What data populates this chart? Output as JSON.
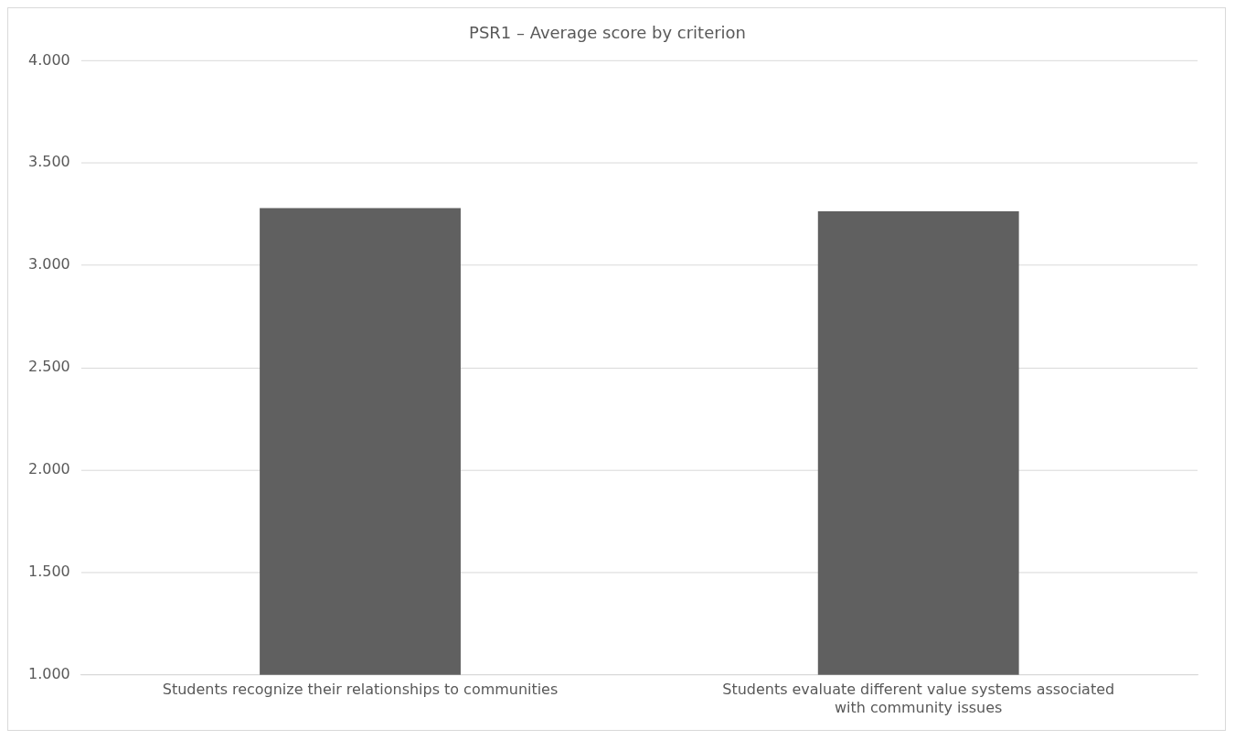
{
  "chart_data": {
    "type": "bar",
    "title": "PSR1 – Average score by criterion",
    "categories": [
      "Students recognize their relationships to communities",
      "Students evaluate different value systems associated with community issues"
    ],
    "values": [
      3.28,
      3.265
    ],
    "color": "#606060",
    "ylim": [
      1,
      4
    ],
    "yticks": [
      {
        "value": 1,
        "label": "1.000"
      },
      {
        "value": 1.5,
        "label": "1.500"
      },
      {
        "value": 2,
        "label": "2.000"
      },
      {
        "value": 2.5,
        "label": "2.500"
      },
      {
        "value": 3,
        "label": "3.000"
      },
      {
        "value": 3.5,
        "label": "3.500"
      },
      {
        "value": 4,
        "label": "4.000"
      }
    ],
    "grid": "y"
  }
}
